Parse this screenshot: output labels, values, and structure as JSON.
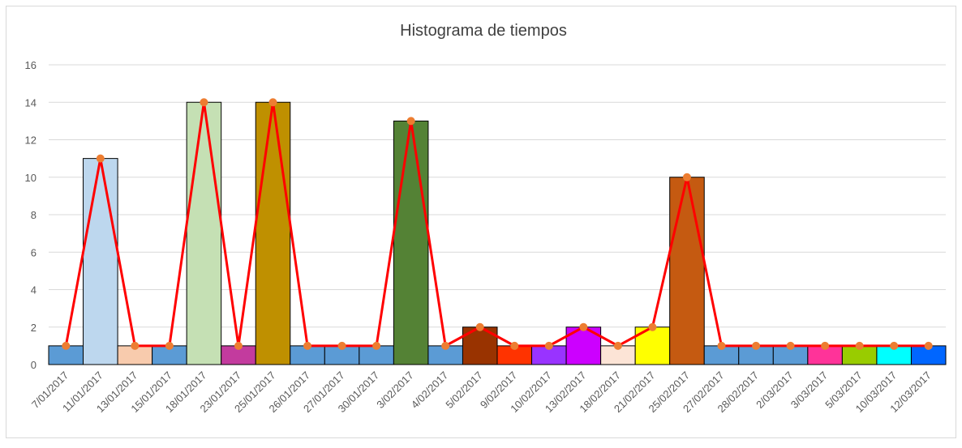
{
  "chart_data": {
    "type": "bar",
    "title": "Histograma de tiempos",
    "categories": [
      "7/01/2017",
      "11/01/2017",
      "13/01/2017",
      "15/01/2017",
      "18/01/2017",
      "23/01/2017",
      "25/01/2017",
      "26/01/2017",
      "27/01/2017",
      "30/01/2017",
      "3/02/2017",
      "4/02/2017",
      "5/02/2017",
      "9/02/2017",
      "10/02/2017",
      "13/02/2017",
      "18/02/2017",
      "21/02/2017",
      "25/02/2017",
      "27/02/2017",
      "28/02/2017",
      "2/03/2017",
      "3/03/2017",
      "5/03/2017",
      "10/03/2017",
      "12/03/2017"
    ],
    "series": [
      {
        "type": "bar",
        "colors": [
          "#5b9bd5",
          "#bdd7ee",
          "#f8cbad",
          "#5b9bd5",
          "#c5e0b4",
          "#c33b9e",
          "#bf9000",
          "#5b9bd5",
          "#5b9bd5",
          "#5b9bd5",
          "#548235",
          "#5b9bd5",
          "#993300",
          "#ff3300",
          "#9933ff",
          "#cc00ff",
          "#fce4d6",
          "#ffff00",
          "#c55a11",
          "#5b9bd5",
          "#5b9bd5",
          "#5b9bd5",
          "#ff3399",
          "#99cc00",
          "#00ffff",
          "#0066ff"
        ],
        "values": [
          1,
          11,
          1,
          1,
          14,
          1,
          14,
          1,
          1,
          1,
          13,
          1,
          2,
          1,
          1,
          2,
          1,
          2,
          10,
          1,
          1,
          1,
          1,
          1,
          1,
          1
        ]
      },
      {
        "type": "line",
        "color": "#ff0000",
        "marker_color": "#ed7d31",
        "values": [
          1,
          11,
          1,
          1,
          14,
          1,
          14,
          1,
          1,
          1,
          13,
          1,
          2,
          1,
          1,
          2,
          1,
          2,
          10,
          1,
          1,
          1,
          1,
          1,
          1,
          1
        ]
      }
    ],
    "ylim": [
      0,
      16
    ],
    "yticks": [
      0,
      2,
      4,
      6,
      8,
      10,
      12,
      14,
      16
    ],
    "grid": true
  }
}
